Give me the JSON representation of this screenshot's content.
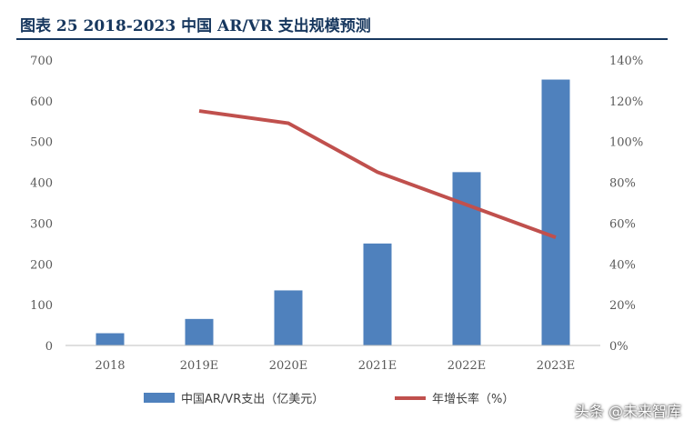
{
  "title": "图表 25 2018-2023 中国 AR/VR 支出规模预测",
  "watermark": "头条 @未来智库",
  "colors": {
    "bar": "#4f81bd",
    "line": "#c0504d",
    "title": "#17375e",
    "axis_text": "#595959"
  },
  "chart_data": {
    "type": "bar",
    "categories": [
      "2018",
      "2019E",
      "2020E",
      "2021E",
      "2022E",
      "2023E"
    ],
    "series": [
      {
        "name": "中国AR/VR支出（亿美元）",
        "type": "bar",
        "axis": "left",
        "values": [
          30,
          65,
          135,
          250,
          425,
          652
        ]
      },
      {
        "name": "年增长率（%）",
        "type": "line",
        "axis": "right",
        "values": [
          null,
          115,
          109,
          85,
          69,
          53
        ]
      }
    ],
    "y_left": {
      "min": 0,
      "max": 700,
      "ticks": [
        "0",
        "100",
        "200",
        "300",
        "400",
        "500",
        "600",
        "700"
      ]
    },
    "y_right": {
      "min": 0,
      "max": 140,
      "ticks": [
        "0%",
        "20%",
        "40%",
        "60%",
        "80%",
        "100%",
        "120%",
        "140%"
      ]
    },
    "legend_position": "bottom",
    "grid": false
  }
}
